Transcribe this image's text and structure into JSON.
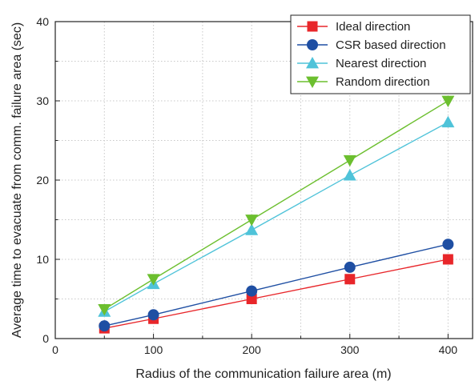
{
  "chart_data": {
    "type": "line",
    "title": "",
    "xlabel": "Radius of the communication failure area (m)",
    "ylabel": "Average time to evacuate from comm. failure area (sec)",
    "xlim": [
      0,
      425
    ],
    "ylim": [
      0,
      40
    ],
    "xticks": [
      0,
      100,
      200,
      300,
      400
    ],
    "yticks": [
      0,
      10,
      20,
      30,
      40
    ],
    "grid": true,
    "legend_position": "top-right",
    "x": [
      50,
      100,
      200,
      300,
      400
    ],
    "series": [
      {
        "name": "Ideal direction",
        "color": "#e8262a",
        "marker": "square",
        "values": [
          1.3,
          2.5,
          5.0,
          7.5,
          10.0
        ]
      },
      {
        "name": "CSR based direction",
        "color": "#1f4fa3",
        "marker": "circle",
        "values": [
          1.6,
          3.0,
          6.0,
          9.0,
          11.9
        ]
      },
      {
        "name": "Nearest direction",
        "color": "#4fc3d9",
        "marker": "triangle-up",
        "values": [
          3.4,
          6.9,
          13.7,
          20.6,
          27.3
        ]
      },
      {
        "name": "Random direction",
        "color": "#6cbf2f",
        "marker": "triangle-down",
        "values": [
          3.7,
          7.5,
          15.0,
          22.5,
          30.0
        ]
      }
    ]
  }
}
